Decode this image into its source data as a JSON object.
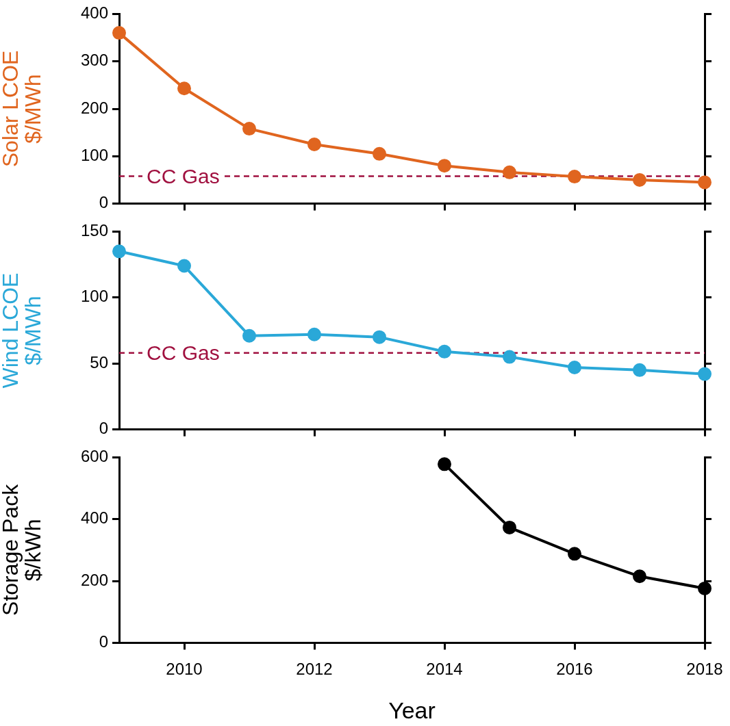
{
  "chart_data": [
    {
      "type": "line",
      "ylabel": "Solar LCOE\n$/MWh",
      "xlim": [
        2009,
        2018
      ],
      "xticks": [
        2010,
        2012,
        2014,
        2016,
        2018
      ],
      "ylim": [
        0,
        400
      ],
      "yticks": [
        0,
        100,
        200,
        300,
        400
      ],
      "tick_labels": "y",
      "marker": "circle",
      "line_style": "solid",
      "grid": false,
      "legend": false,
      "series": [
        {
          "color": "#e0651f",
          "x": [
            2009,
            2010,
            2011,
            2012,
            2013,
            2014,
            2015,
            2016,
            2017,
            2018
          ],
          "values": [
            360,
            243,
            158,
            125,
            105,
            80,
            66,
            57,
            50,
            45
          ]
        }
      ],
      "ref_lines": [
        {
          "axis": "y",
          "value": 58,
          "label": "CC Gas",
          "color": "#a0103f",
          "line_style": "dashed"
        }
      ]
    },
    {
      "type": "line",
      "ylabel": "Wind LCOE\n$/MWh",
      "xlim": [
        2009,
        2018
      ],
      "xticks": [
        2010,
        2012,
        2014,
        2016,
        2018
      ],
      "ylim": [
        0,
        150
      ],
      "yticks": [
        0,
        50,
        100,
        150
      ],
      "tick_labels": "y",
      "marker": "circle",
      "line_style": "solid",
      "grid": false,
      "legend": false,
      "series": [
        {
          "color": "#2aa8d8",
          "x": [
            2009,
            2010,
            2011,
            2012,
            2013,
            2014,
            2015,
            2016,
            2017,
            2018
          ],
          "values": [
            135,
            124,
            71,
            72,
            70,
            59,
            55,
            47,
            45,
            42
          ]
        }
      ],
      "ref_lines": [
        {
          "axis": "y",
          "value": 58,
          "label": "CC Gas",
          "color": "#a0103f",
          "line_style": "dashed"
        }
      ]
    },
    {
      "type": "line",
      "ylabel": "Storage Pack\n$/kWh",
      "xlabel": "Year",
      "xlim": [
        2009,
        2018
      ],
      "xticks": [
        2010,
        2012,
        2014,
        2016,
        2018
      ],
      "ylim": [
        0,
        600
      ],
      "yticks": [
        0,
        200,
        400,
        600
      ],
      "marker": "circle",
      "line_style": "solid",
      "grid": false,
      "legend": false,
      "series": [
        {
          "color": "#000000",
          "x": [
            2014,
            2015,
            2016,
            2017,
            2018
          ],
          "values": [
            578,
            373,
            288,
            215,
            176
          ]
        }
      ]
    }
  ]
}
